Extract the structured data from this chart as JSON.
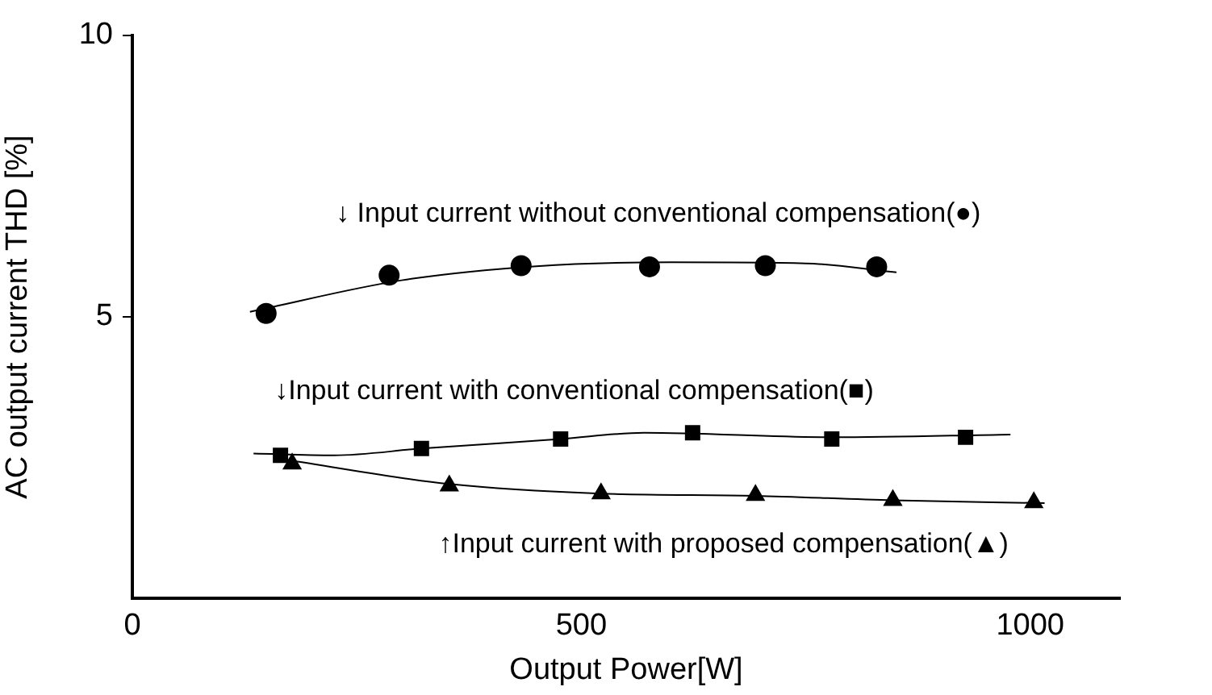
{
  "chart_data": {
    "type": "scatter",
    "xlabel": "Output Power[W]",
    "ylabel": "AC output current THD [%]",
    "xlim": [
      0,
      1100
    ],
    "xticks": [
      0,
      500,
      1000
    ],
    "ylim": [
      0,
      10
    ],
    "yticks": [
      5,
      10
    ],
    "grid": false,
    "legend": false,
    "series": [
      {
        "marker": "circle",
        "color": "#000000",
        "x": [
          149,
          286,
          433,
          576,
          705,
          829
        ],
        "values": [
          5.06,
          5.74,
          5.91,
          5.89,
          5.91,
          5.89
        ]
      },
      {
        "marker": "square",
        "color": "#000000",
        "x": [
          165,
          322,
          477,
          624,
          779,
          928
        ],
        "values": [
          2.54,
          2.66,
          2.83,
          2.94,
          2.83,
          2.86
        ]
      },
      {
        "marker": "triangle",
        "color": "#000000",
        "x": [
          178,
          353,
          522,
          694,
          847,
          1004
        ],
        "values": [
          2.39,
          2.0,
          1.86,
          1.83,
          1.74,
          1.7
        ]
      },
      {
        "type": "line",
        "marker": "none",
        "line_style": "solid",
        "color": "#000000",
        "x": [
          131,
          300,
          450,
          600,
          750,
          851
        ],
        "values": [
          5.09,
          5.65,
          5.9,
          5.97,
          5.95,
          5.79
        ]
      },
      {
        "type": "line",
        "marker": "none",
        "line_style": "solid",
        "color": "#000000",
        "x": [
          135,
          225,
          322,
          477,
          570,
          780,
          978
        ],
        "values": [
          2.57,
          2.54,
          2.66,
          2.83,
          2.94,
          2.86,
          2.91
        ]
      },
      {
        "type": "line",
        "marker": "none",
        "line_style": "solid",
        "color": "#000000",
        "x": [
          171,
          353,
          522,
          694,
          847,
          1016
        ],
        "values": [
          2.46,
          2.03,
          1.86,
          1.82,
          1.74,
          1.69
        ]
      }
    ],
    "annotations": [
      "↓ Input current without conventional compensation(●)",
      "↓Input current with conventional compensation(■)",
      "↑Input current with proposed compensation(▲)"
    ]
  }
}
